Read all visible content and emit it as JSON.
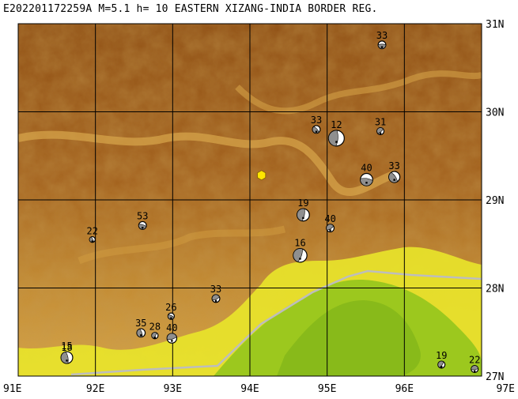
{
  "title": "E202201172259A M=5.1 h= 10 EASTERN XIZANG-INDIA BORDER REG.",
  "colors": {
    "relief_high": "#8a4a12",
    "relief_mid": "#b9782a",
    "relief_low": "#d8a442",
    "lowland": "#e8e82a",
    "plain": "#9cc81e",
    "plain_dark": "#7aab1a",
    "border": "#bdbdbd",
    "grid": "#000000",
    "epicenter": "#ffe600"
  },
  "x_ticks": [
    {
      "id": "91E",
      "label": "91E",
      "lon": 91
    },
    {
      "id": "92E",
      "label": "92E",
      "lon": 92
    },
    {
      "id": "93E",
      "label": "93E",
      "lon": 93
    },
    {
      "id": "94E",
      "label": "94E",
      "lon": 94
    },
    {
      "id": "95E",
      "label": "95E",
      "lon": 95
    },
    {
      "id": "96E",
      "label": "96E",
      "lon": 96
    },
    {
      "id": "97E",
      "label": "97E",
      "lon": 97
    }
  ],
  "y_ticks": [
    {
      "id": "27N",
      "label": "27N",
      "lat": 27
    },
    {
      "id": "28N",
      "label": "28N",
      "lat": 28
    },
    {
      "id": "29N",
      "label": "29N",
      "lat": 29
    },
    {
      "id": "30N",
      "label": "30N",
      "lat": 30
    },
    {
      "id": "31N",
      "label": "31N",
      "lat": 31
    }
  ],
  "extent": {
    "lon": [
      91,
      97
    ],
    "lat": [
      27,
      31
    ]
  },
  "epicenter": {
    "lon": 94.15,
    "lat": 29.28
  },
  "mechanisms": [
    {
      "id": "m01",
      "depth": "33",
      "lon": 95.71,
      "lat": 30.76,
      "mag": 4.8
    },
    {
      "id": "m02",
      "depth": "33",
      "lon": 94.86,
      "lat": 29.8,
      "mag": 4.8
    },
    {
      "id": "m03",
      "depth": "12",
      "lon": 95.12,
      "lat": 29.7,
      "mag": 6.0
    },
    {
      "id": "m04",
      "depth": "31",
      "lon": 95.69,
      "lat": 29.78,
      "mag": 4.7
    },
    {
      "id": "m05",
      "depth": "40",
      "lon": 95.51,
      "lat": 29.23,
      "mag": 5.5
    },
    {
      "id": "m06",
      "depth": "33",
      "lon": 95.87,
      "lat": 29.26,
      "mag": 5.3
    },
    {
      "id": "m07",
      "depth": "19",
      "lon": 94.69,
      "lat": 28.83,
      "mag": 5.5
    },
    {
      "id": "m08",
      "depth": "40",
      "lon": 95.04,
      "lat": 28.68,
      "mag": 4.8
    },
    {
      "id": "m09",
      "depth": "53",
      "lon": 92.61,
      "lat": 28.71,
      "mag": 4.8
    },
    {
      "id": "m10",
      "depth": "22",
      "lon": 91.96,
      "lat": 28.55,
      "mag": 4.5
    },
    {
      "id": "m11",
      "depth": "16",
      "lon": 94.65,
      "lat": 28.37,
      "mag": 5.7
    },
    {
      "id": "m12",
      "depth": "33",
      "lon": 93.56,
      "lat": 27.88,
      "mag": 4.8
    },
    {
      "id": "m13",
      "depth": "26",
      "lon": 92.98,
      "lat": 27.68,
      "mag": 4.6
    },
    {
      "id": "m14",
      "depth": "35",
      "lon": 92.59,
      "lat": 27.49,
      "mag": 4.9
    },
    {
      "id": "m15",
      "depth": "28",
      "lon": 92.77,
      "lat": 27.46,
      "mag": 4.6
    },
    {
      "id": "m16",
      "depth": "40",
      "lon": 92.99,
      "lat": 27.43,
      "mag": 5.1
    },
    {
      "id": "m17",
      "depth": "18",
      "lon": 91.63,
      "lat": 27.22,
      "mag": 4.7
    },
    {
      "id": "m18",
      "depth": "15",
      "lon": 91.63,
      "lat": 27.21,
      "mag": 5.4
    },
    {
      "id": "m19",
      "depth": "19",
      "lon": 96.48,
      "lat": 27.13,
      "mag": 4.7
    },
    {
      "id": "m20",
      "depth": "22",
      "lon": 96.91,
      "lat": 27.08,
      "mag": 4.7
    }
  ]
}
